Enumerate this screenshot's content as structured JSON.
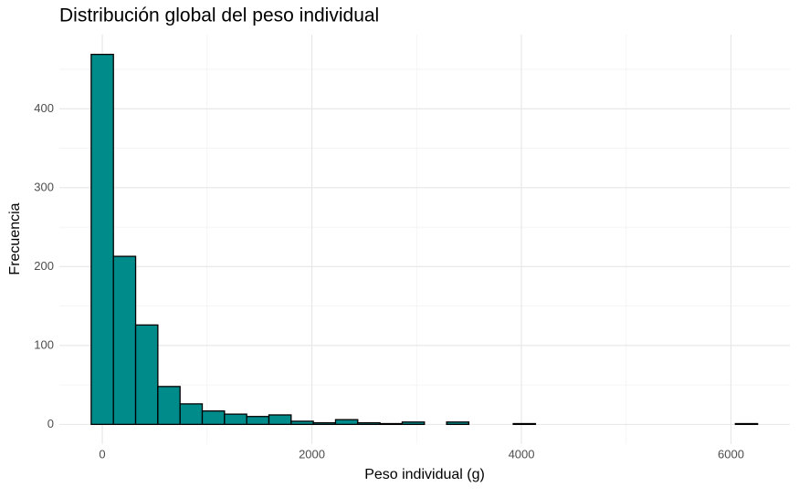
{
  "chart_data": {
    "type": "histogram",
    "title": "Distribución global del peso individual",
    "x_label": "Peso individual (g)",
    "y_label": "Frecuencia",
    "bins": [
      -106,
      106,
      318,
      530,
      742,
      954,
      1166,
      1378,
      1590,
      1802,
      2014,
      2226,
      2438,
      2650,
      2862,
      3074,
      3286,
      3498,
      3710,
      3922,
      4134,
      4346,
      4558,
      4770,
      4982,
      5194,
      5406,
      5618,
      5830,
      6042,
      6254
    ],
    "values": [
      469,
      213,
      126,
      48,
      26,
      17,
      13,
      10,
      12,
      4,
      2,
      6,
      2,
      1,
      3,
      0,
      3,
      0,
      0,
      1,
      0,
      0,
      0,
      0,
      0,
      0,
      0,
      0,
      0,
      1
    ],
    "color": "#008b8b",
    "xlim": [
      -410,
      6562
    ],
    "ylim": [
      -25,
      494
    ],
    "xticks": [
      0,
      2000,
      4000,
      6000
    ],
    "yticks": [
      0,
      100,
      200,
      300,
      400
    ],
    "grid": true
  }
}
